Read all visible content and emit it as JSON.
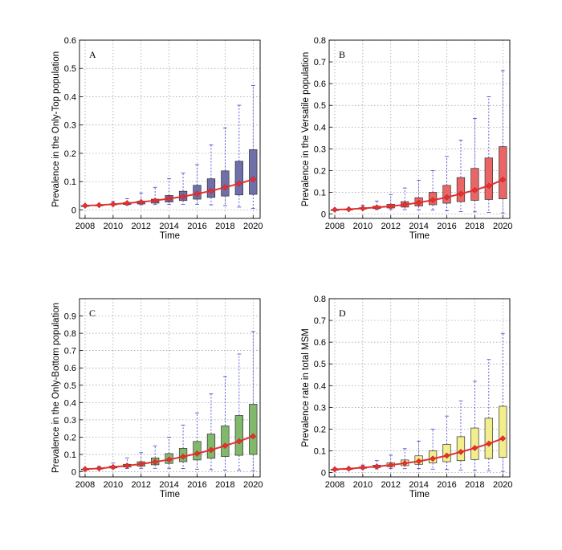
{
  "figure": {
    "panels": [
      {
        "panel_label": "A",
        "xlabel": "Time",
        "ylabel": "Prevalence in the Only-Top population",
        "box_color": "#6f6fa9"
      },
      {
        "panel_label": "B",
        "xlabel": "Time",
        "ylabel": "Prevalence in the Versatile population",
        "box_color": "#ea6565"
      },
      {
        "panel_label": "C",
        "xlabel": "Time",
        "ylabel": "Prevalence in the Only-Bottom population",
        "box_color": "#82b86a"
      },
      {
        "panel_label": "D",
        "xlabel": "Time",
        "ylabel": "Prevalence rate in total MSM",
        "box_color": "#f2ee8c"
      }
    ]
  },
  "chart_data": [
    {
      "type": "box",
      "panel_label": "A",
      "xlabel": "Time",
      "ylabel": "Prevalence in the Only-Top population",
      "xlim": [
        2007.6,
        2020.5
      ],
      "ylim": [
        -0.03,
        0.6
      ],
      "xticks": [
        2008,
        2010,
        2012,
        2014,
        2016,
        2018,
        2020
      ],
      "yticks": [
        0,
        0.1,
        0.2,
        0.3,
        0.4,
        0.5,
        0.6
      ],
      "grid": true,
      "box_color": "#6f6fa9",
      "median_line_color": "#e53030",
      "years": [
        2008,
        2009,
        2010,
        2011,
        2012,
        2013,
        2014,
        2015,
        2016,
        2017,
        2018,
        2019,
        2020
      ],
      "q1": [
        0.015,
        0.017,
        0.018,
        0.019,
        0.021,
        0.024,
        0.028,
        0.033,
        0.038,
        0.044,
        0.049,
        0.053,
        0.055
      ],
      "q3": [
        0.015,
        0.017,
        0.021,
        0.026,
        0.031,
        0.038,
        0.051,
        0.066,
        0.087,
        0.11,
        0.138,
        0.172,
        0.213
      ],
      "whisker_low": [
        0.015,
        0.016,
        0.017,
        0.017,
        0.018,
        0.019,
        0.02,
        0.02,
        0.02,
        0.018,
        0.015,
        0.01,
        0.005
      ],
      "whisker_high": [
        0.015,
        0.018,
        0.03,
        0.04,
        0.06,
        0.08,
        0.11,
        0.13,
        0.16,
        0.23,
        0.29,
        0.37,
        0.44
      ],
      "median": [
        0.015,
        0.017,
        0.02,
        0.024,
        0.028,
        0.033,
        0.04,
        0.047,
        0.057,
        0.067,
        0.08,
        0.093,
        0.108
      ]
    },
    {
      "type": "box",
      "panel_label": "B",
      "xlabel": "Time",
      "ylabel": "Prevalence in the Versatile population",
      "xlim": [
        2007.6,
        2020.5
      ],
      "ylim": [
        -0.02,
        0.8
      ],
      "xticks": [
        2008,
        2010,
        2012,
        2014,
        2016,
        2018,
        2020
      ],
      "yticks": [
        0,
        0.1,
        0.2,
        0.3,
        0.4,
        0.5,
        0.6,
        0.7,
        0.8
      ],
      "grid": true,
      "box_color": "#ea6565",
      "median_line_color": "#e53030",
      "years": [
        2008,
        2009,
        2010,
        2011,
        2012,
        2013,
        2014,
        2015,
        2016,
        2017,
        2018,
        2019,
        2020
      ],
      "q1": [
        0.02,
        0.021,
        0.023,
        0.025,
        0.028,
        0.032,
        0.037,
        0.043,
        0.05,
        0.057,
        0.063,
        0.067,
        0.07
      ],
      "q3": [
        0.02,
        0.022,
        0.029,
        0.036,
        0.045,
        0.057,
        0.075,
        0.1,
        0.132,
        0.168,
        0.21,
        0.258,
        0.31
      ],
      "whisker_low": [
        0.02,
        0.02,
        0.021,
        0.021,
        0.021,
        0.02,
        0.02,
        0.018,
        0.015,
        0.012,
        0.01,
        0.008,
        0.005
      ],
      "whisker_high": [
        0.02,
        0.025,
        0.04,
        0.06,
        0.09,
        0.12,
        0.155,
        0.2,
        0.265,
        0.34,
        0.44,
        0.54,
        0.66
      ],
      "median": [
        0.02,
        0.022,
        0.026,
        0.031,
        0.036,
        0.043,
        0.053,
        0.064,
        0.077,
        0.093,
        0.11,
        0.13,
        0.158
      ]
    },
    {
      "type": "box",
      "panel_label": "C",
      "xlabel": "Time",
      "ylabel": "Prevalence in the Only-Bottom population",
      "xlim": [
        2007.6,
        2020.5
      ],
      "ylim": [
        -0.03,
        1.0
      ],
      "xticks": [
        2008,
        2010,
        2012,
        2014,
        2016,
        2018,
        2020
      ],
      "yticks": [
        0,
        0.1,
        0.2,
        0.3,
        0.4,
        0.5,
        0.6,
        0.7,
        0.8,
        0.9
      ],
      "grid": true,
      "box_color": "#82b86a",
      "median_line_color": "#e53030",
      "years": [
        2008,
        2009,
        2010,
        2011,
        2012,
        2013,
        2014,
        2015,
        2016,
        2017,
        2018,
        2019,
        2020
      ],
      "q1": [
        0.015,
        0.018,
        0.022,
        0.027,
        0.032,
        0.04,
        0.048,
        0.058,
        0.068,
        0.078,
        0.088,
        0.095,
        0.1
      ],
      "q3": [
        0.015,
        0.02,
        0.032,
        0.043,
        0.058,
        0.08,
        0.105,
        0.135,
        0.175,
        0.218,
        0.265,
        0.325,
        0.39
      ],
      "whisker_low": [
        0.015,
        0.016,
        0.018,
        0.019,
        0.02,
        0.02,
        0.02,
        0.018,
        0.015,
        0.012,
        0.01,
        0.008,
        0.005
      ],
      "whisker_high": [
        0.015,
        0.03,
        0.05,
        0.08,
        0.11,
        0.15,
        0.2,
        0.27,
        0.34,
        0.45,
        0.55,
        0.68,
        0.81
      ],
      "median": [
        0.015,
        0.019,
        0.027,
        0.035,
        0.045,
        0.057,
        0.07,
        0.087,
        0.105,
        0.126,
        0.15,
        0.176,
        0.205
      ]
    },
    {
      "type": "box",
      "panel_label": "D",
      "xlabel": "Time",
      "ylabel": "Prevalence rate in total MSM",
      "xlim": [
        2007.6,
        2020.5
      ],
      "ylim": [
        -0.02,
        0.8
      ],
      "xticks": [
        2008,
        2010,
        2012,
        2014,
        2016,
        2018,
        2020
      ],
      "yticks": [
        0,
        0.1,
        0.2,
        0.3,
        0.4,
        0.5,
        0.6,
        0.7,
        0.8
      ],
      "grid": true,
      "box_color": "#f2ee8c",
      "median_line_color": "#e53030",
      "years": [
        2008,
        2009,
        2010,
        2011,
        2012,
        2013,
        2014,
        2015,
        2016,
        2017,
        2018,
        2019,
        2020
      ],
      "q1": [
        0.015,
        0.017,
        0.02,
        0.023,
        0.027,
        0.032,
        0.038,
        0.044,
        0.05,
        0.055,
        0.06,
        0.065,
        0.07
      ],
      "q3": [
        0.015,
        0.018,
        0.026,
        0.034,
        0.045,
        0.058,
        0.077,
        0.1,
        0.13,
        0.165,
        0.205,
        0.25,
        0.305
      ],
      "whisker_low": [
        0.015,
        0.016,
        0.017,
        0.017,
        0.018,
        0.018,
        0.018,
        0.016,
        0.014,
        0.012,
        0.01,
        0.008,
        0.005
      ],
      "whisker_high": [
        0.015,
        0.02,
        0.035,
        0.055,
        0.08,
        0.11,
        0.145,
        0.2,
        0.26,
        0.33,
        0.42,
        0.52,
        0.64
      ],
      "median": [
        0.015,
        0.018,
        0.023,
        0.028,
        0.035,
        0.043,
        0.052,
        0.064,
        0.078,
        0.095,
        0.113,
        0.133,
        0.157
      ]
    }
  ]
}
